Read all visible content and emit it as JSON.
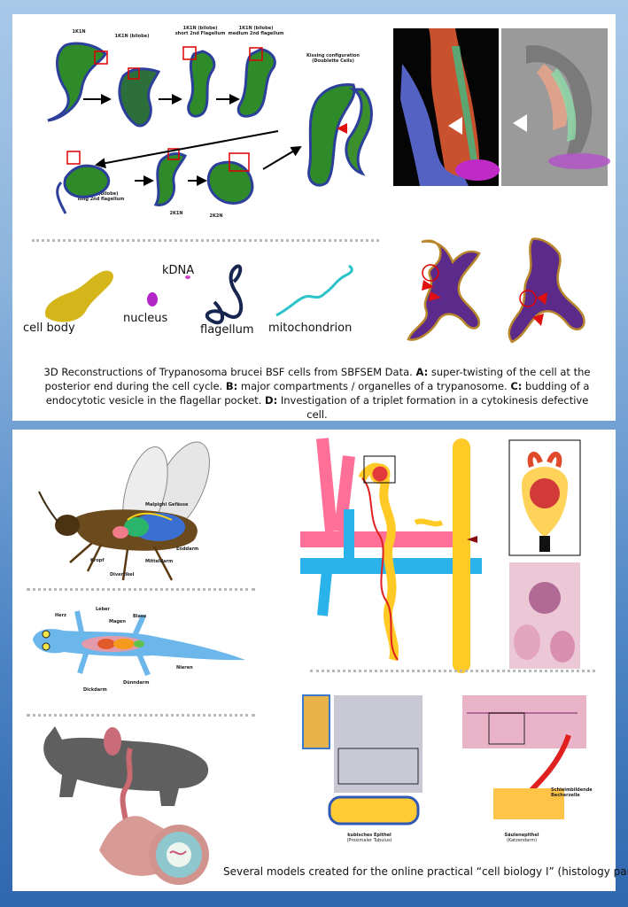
{
  "top": {
    "stages": {
      "s1": "1K1N",
      "s2": "1K1N (bilobe)",
      "s3": "1K1N (bilobe)\nshort 2nd Flagellum",
      "s4": "1K1N (bilobe)\nmedium 2nd flagellum",
      "s5": "Kissing configuration\n(Doublette Cells)",
      "s6": "1K1N (bilobe)\nlong 2nd flagellum",
      "s7": "2K1N",
      "s8": "2K2N"
    },
    "organelles": {
      "cell_body": "cell body",
      "nucleus": "nucleus",
      "kdna": "kDNA",
      "flagellum": "flagellum",
      "mitochondrion": "mitochondrion"
    },
    "caption": {
      "intro": "3D Reconstructions of Trypanosoma brucei BSF cells from SBFSEM Data.",
      "a_label": "A:",
      "a_text": "super-twisting of the cell at the posterior end during the cell cycle.",
      "b_label": "B:",
      "b_text": "major compartments / organelles of a trypanosome.",
      "c_label": "C:",
      "c_text": "budding of a endocytotic vesicle in the flagellar pocket.",
      "d_label": "D:",
      "d_text": "Investigation of a triplet formation in a cytokinesis defective cell."
    }
  },
  "bottom": {
    "insect": {
      "malpighi": "Malpighi Gefässe",
      "enddarm": "Enddarm",
      "kropf": "Kropf",
      "mitteldarm": "Mitteldarm",
      "divertikel": "Divertikel"
    },
    "salamander": {
      "leber": "Leber",
      "herz": "Herz",
      "magen": "Magen",
      "blase": "Blase",
      "nieren": "Nieren",
      "duenndarm": "Dünndarm",
      "dickdarm": "Dickdarm"
    },
    "epithel": {
      "kubisch": "kubisches Epithel",
      "kubisch_sub": "(Proximaler Tubulus)",
      "saeulen": "Säulenepithel",
      "saeulen_sub": "(Katzendarm)",
      "becher": "Schleimbildende\nBecherzelle"
    },
    "caption": "Several models created for the online practical “cell biology I” (histology part)"
  }
}
